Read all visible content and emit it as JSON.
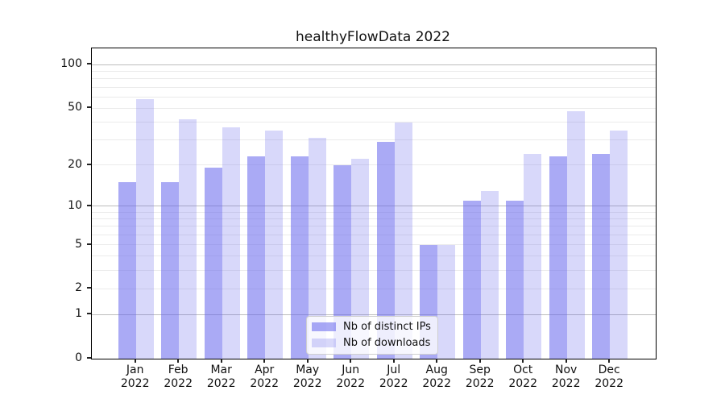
{
  "title": "healthyFlowData 2022",
  "year_label": "2022",
  "legend": {
    "items": [
      {
        "label": "Nb of distinct IPs"
      },
      {
        "label": "Nb of downloads"
      }
    ]
  },
  "colors": {
    "bar_base": "100,100,236",
    "ips_alpha": 0.55,
    "downloads_alpha": 0.25,
    "grid_minor": "#ebebeb",
    "grid_major": "#bdbdbd",
    "spine": "#000000"
  },
  "chart_data": {
    "type": "bar",
    "title": "healthyFlowData 2022",
    "categories": [
      "Jan 2022",
      "Feb 2022",
      "Mar 2022",
      "Apr 2022",
      "May 2022",
      "Jun 2022",
      "Jul 2022",
      "Aug 2022",
      "Sep 2022",
      "Oct 2022",
      "Nov 2022",
      "Dec 2022"
    ],
    "months": [
      "Jan",
      "Feb",
      "Mar",
      "Apr",
      "May",
      "Jun",
      "Jul",
      "Aug",
      "Sep",
      "Oct",
      "Nov",
      "Dec"
    ],
    "series": [
      {
        "name": "Nb of distinct IPs",
        "values": [
          15,
          15,
          19,
          23,
          23,
          20,
          29,
          5,
          11,
          11,
          23,
          24
        ]
      },
      {
        "name": "Nb of downloads",
        "values": [
          58,
          42,
          37,
          35,
          31,
          22,
          40,
          5,
          13,
          24,
          48,
          35
        ]
      }
    ],
    "xlabel": "",
    "ylabel": "",
    "y_scale": "log1p",
    "ylim": [
      0,
      130
    ],
    "y_ticks": [
      0,
      1,
      2,
      5,
      10,
      20,
      50,
      100
    ],
    "grid_major_values": [
      1,
      10,
      100
    ],
    "grid_minor_values": [
      2,
      3,
      4,
      5,
      6,
      7,
      8,
      9,
      20,
      30,
      40,
      50,
      60,
      70,
      80,
      90
    ],
    "grid": true,
    "legend_position": "lower center"
  }
}
